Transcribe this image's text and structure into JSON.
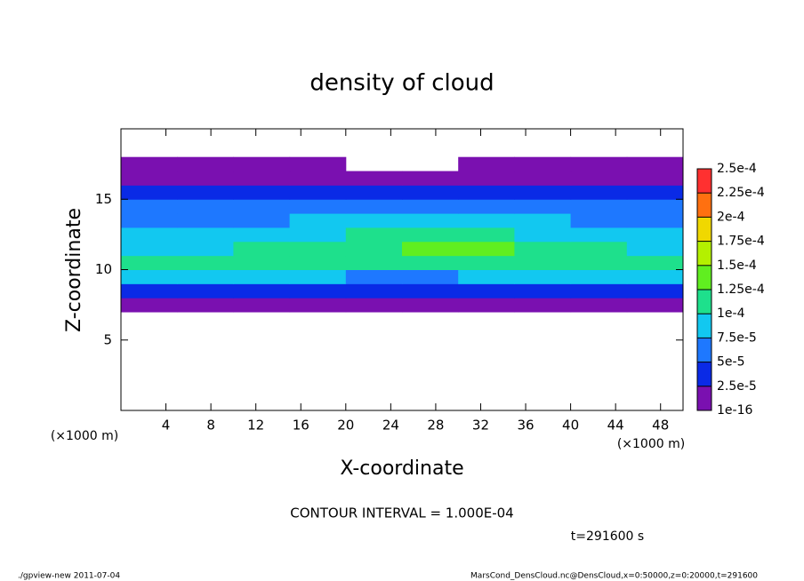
{
  "chart_data": {
    "type": "heatmap",
    "title": "density of cloud",
    "x_label": "X-coordinate",
    "y_label": "Z-coordinate",
    "unit_label": "(×1000 m)",
    "contour_note": "CONTOUR INTERVAL = 1.000E-04",
    "time_note": "t=291600 s",
    "footer_left": "./gpview-new  2011-07-04",
    "footer_right": "MarsCond_DensCloud.nc@DensCloud,x=0:50000,z=0:20000,t=291600",
    "xlim": [
      0,
      50
    ],
    "xticks": [
      4,
      8,
      12,
      16,
      20,
      24,
      28,
      32,
      36,
      40,
      44,
      48
    ],
    "ylim": [
      0,
      20
    ],
    "yticks": [
      5,
      10,
      15
    ],
    "x": [
      2.5,
      7.5,
      12.5,
      17.5,
      22.5,
      27.5,
      32.5,
      37.5,
      42.5,
      47.5
    ],
    "y": [
      7.5,
      8.5,
      9.5,
      10.5,
      11.5,
      12.5,
      13.5,
      14.5,
      15.5,
      16.5,
      17.5
    ],
    "values": [
      [
        1e-05,
        1e-05,
        1e-05,
        1e-05,
        1e-05,
        1e-05,
        1e-05,
        1e-05,
        1e-05,
        1e-05
      ],
      [
        4e-05,
        4e-05,
        4e-05,
        4e-05,
        3e-05,
        4e-05,
        4e-05,
        4e-05,
        4e-05,
        4e-05
      ],
      [
        8e-05,
        8e-05,
        8e-05,
        8e-05,
        7e-05,
        7e-05,
        8e-05,
        8e-05,
        8e-05,
        8e-05
      ],
      [
        0.0001,
        0.000105,
        0.000105,
        0.00011,
        0.000115,
        0.00012,
        0.000115,
        0.00011,
        0.000105,
        0.0001
      ],
      [
        9e-05,
        9.5e-05,
        0.000105,
        0.00011,
        0.00012,
        0.00014,
        0.00013,
        0.000115,
        0.0001,
        9e-05
      ],
      [
        8e-05,
        8e-05,
        8.5e-05,
        9e-05,
        0.0001,
        0.00011,
        0.000105,
        9.5e-05,
        8.5e-05,
        8e-05
      ],
      [
        7e-05,
        6.5e-05,
        7e-05,
        7.5e-05,
        8e-05,
        8.5e-05,
        8e-05,
        7.5e-05,
        7e-05,
        7e-05
      ],
      [
        6e-05,
        5e-05,
        6e-05,
        6e-05,
        6.5e-05,
        6.5e-05,
        6e-05,
        6e-05,
        6e-05,
        6e-05
      ],
      [
        4e-05,
        4e-05,
        4.5e-05,
        4.5e-05,
        4.5e-05,
        4.5e-05,
        4.5e-05,
        4.5e-05,
        4.5e-05,
        4e-05
      ],
      [
        2e-05,
        2e-05,
        2e-05,
        2e-05,
        2e-05,
        2e-05,
        2e-05,
        2e-05,
        2e-05,
        2e-05
      ],
      [
        1e-05,
        1e-05,
        1e-05,
        1e-05,
        null,
        null,
        1e-05,
        1e-05,
        1e-05,
        1e-05
      ]
    ],
    "levels": [
      {
        "value": 1e-16,
        "label": "1e-16"
      },
      {
        "value": 2.5e-05,
        "label": "2.5e-5"
      },
      {
        "value": 5e-05,
        "label": "5e-5"
      },
      {
        "value": 7.5e-05,
        "label": "7.5e-5"
      },
      {
        "value": 0.0001,
        "label": "1e-4"
      },
      {
        "value": 0.000125,
        "label": "1.25e-4"
      },
      {
        "value": 0.00015,
        "label": "1.5e-4"
      },
      {
        "value": 0.000175,
        "label": "1.75e-4"
      },
      {
        "value": 0.0002,
        "label": "2e-4"
      },
      {
        "value": 0.000225,
        "label": "2.25e-4"
      },
      {
        "value": 0.00025,
        "label": "2.5e-4"
      }
    ],
    "colors": [
      "#7a10b0",
      "#0a2ae6",
      "#1e78ff",
      "#12c8f0",
      "#1ee08c",
      "#60ee20",
      "#b4f000",
      "#f0d800",
      "#ff7010",
      "#ff3030"
    ]
  }
}
